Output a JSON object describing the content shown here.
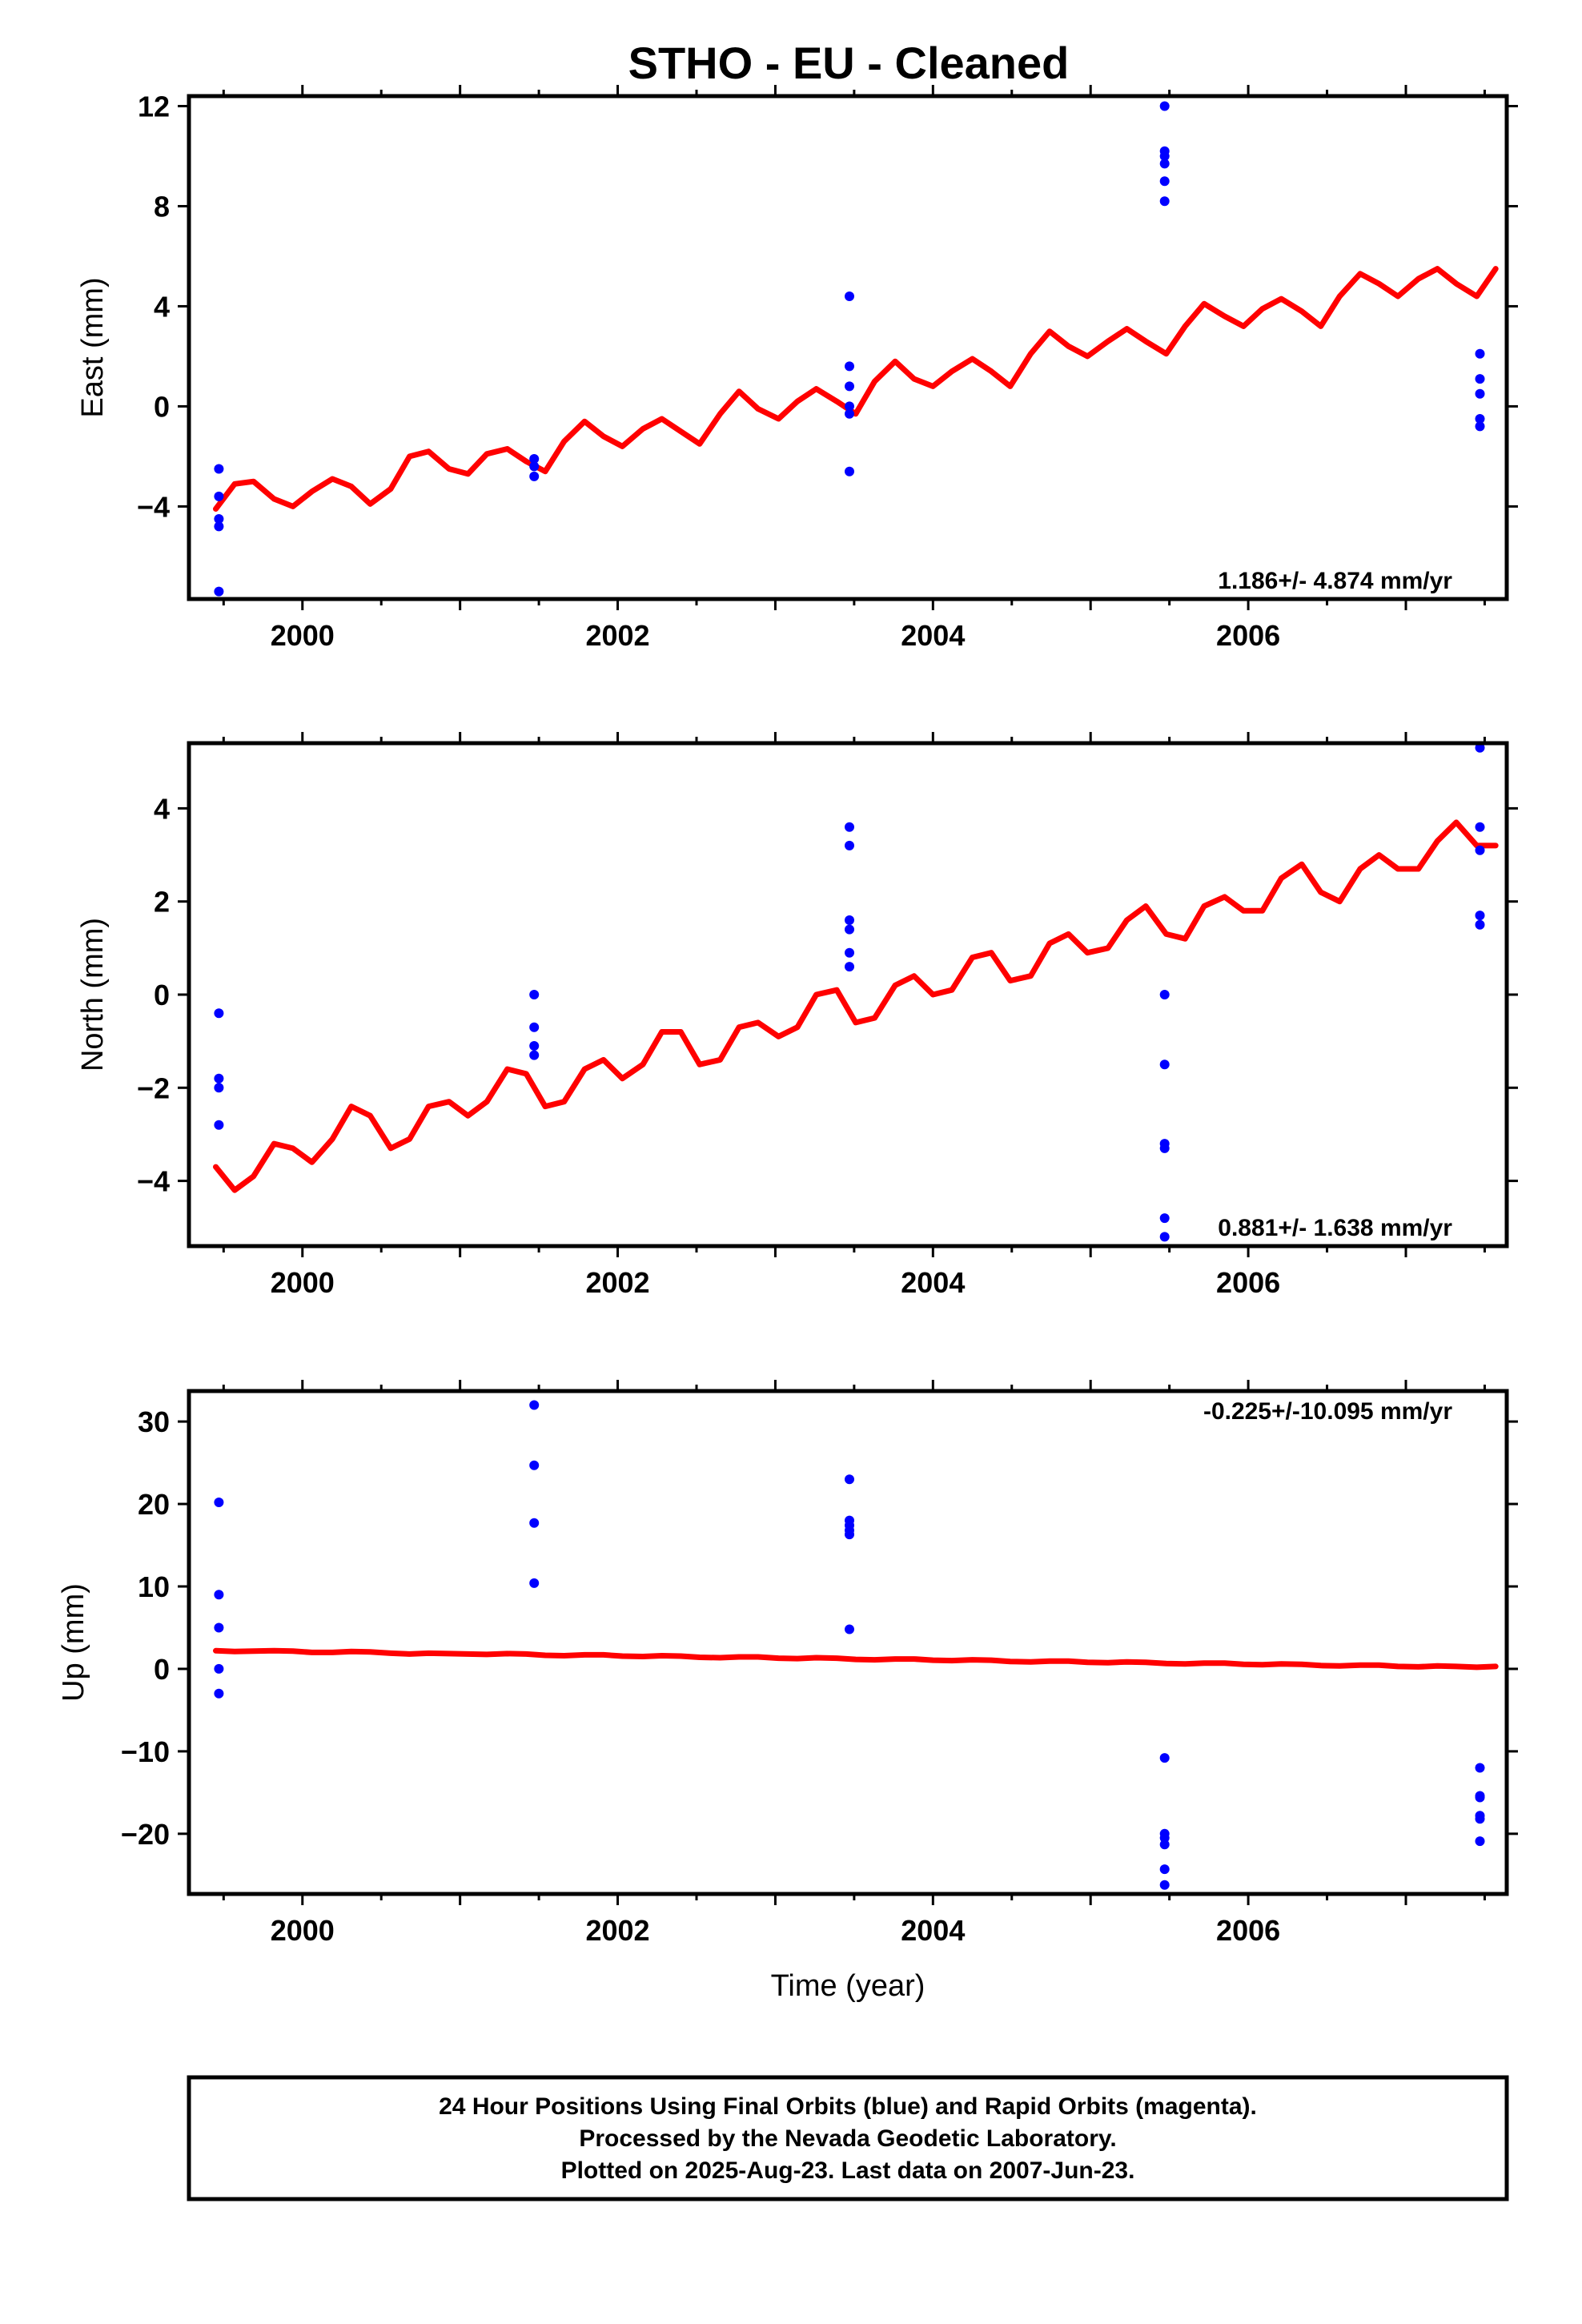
{
  "title": "STHO  - EU - Cleaned",
  "caption": [
    "24 Hour Positions Using Final Orbits (blue) and Rapid Orbits (magenta).",
    "Processed by the Nevada Geodetic Laboratory.",
    "Plotted on 2025-Aug-23. Last data on 2007-Jun-23."
  ],
  "colors": {
    "points": "#0000ff",
    "model": "#ff0000",
    "frame": "#000000"
  },
  "chart_data": [
    {
      "type": "scatter",
      "ylabel": "East (mm)",
      "xlabel": "",
      "xlim": [
        1999.28,
        2007.64
      ],
      "ylim": [
        -7.7,
        12.4
      ],
      "yticks": [
        -4,
        0,
        4,
        8,
        12
      ],
      "xticks": [
        2000,
        2002,
        2004,
        2006
      ],
      "rate": "1.186+/- 4.874 mm/yr",
      "rate_position": "bottom-right",
      "points": [
        [
          1999.47,
          -2.5
        ],
        [
          1999.47,
          -3.6
        ],
        [
          1999.47,
          -4.5
        ],
        [
          1999.47,
          -4.8
        ],
        [
          1999.47,
          -7.4
        ],
        [
          2001.47,
          -2.1
        ],
        [
          2001.47,
          -2.4
        ],
        [
          2001.47,
          -2.8
        ],
        [
          2003.47,
          4.4
        ],
        [
          2003.47,
          1.6
        ],
        [
          2003.47,
          0.8
        ],
        [
          2003.47,
          0.0
        ],
        [
          2003.47,
          -0.3
        ],
        [
          2003.47,
          -2.6
        ],
        [
          2005.47,
          12.0
        ],
        [
          2005.47,
          10.2
        ],
        [
          2005.47,
          10.0
        ],
        [
          2005.47,
          9.7
        ],
        [
          2005.47,
          9.0
        ],
        [
          2005.47,
          8.2
        ],
        [
          2007.47,
          2.1
        ],
        [
          2007.47,
          1.1
        ],
        [
          2007.47,
          0.5
        ],
        [
          2007.47,
          -0.5
        ],
        [
          2007.47,
          -0.8
        ]
      ],
      "model": [
        [
          1999.45,
          -4.1
        ],
        [
          1999.57,
          -3.1
        ],
        [
          1999.69,
          -3.0
        ],
        [
          1999.82,
          -3.7
        ],
        [
          1999.94,
          -4.0
        ],
        [
          2000.06,
          -3.4
        ],
        [
          2000.19,
          -2.9
        ],
        [
          2000.31,
          -3.2
        ],
        [
          2000.43,
          -3.9
        ],
        [
          2000.56,
          -3.3
        ],
        [
          2000.68,
          -2.0
        ],
        [
          2000.8,
          -1.8
        ],
        [
          2000.93,
          -2.5
        ],
        [
          2001.05,
          -2.7
        ],
        [
          2001.17,
          -1.9
        ],
        [
          2001.3,
          -1.7
        ],
        [
          2001.42,
          -2.2
        ],
        [
          2001.54,
          -2.6
        ],
        [
          2001.66,
          -1.4
        ],
        [
          2001.79,
          -0.6
        ],
        [
          2001.91,
          -1.2
        ],
        [
          2002.03,
          -1.6
        ],
        [
          2002.16,
          -0.9
        ],
        [
          2002.28,
          -0.5
        ],
        [
          2002.4,
          -1.0
        ],
        [
          2002.52,
          -1.5
        ],
        [
          2002.65,
          -0.3
        ],
        [
          2002.77,
          0.6
        ],
        [
          2002.89,
          -0.1
        ],
        [
          2003.02,
          -0.5
        ],
        [
          2003.14,
          0.2
        ],
        [
          2003.26,
          0.7
        ],
        [
          2003.39,
          0.2
        ],
        [
          2003.51,
          -0.3
        ],
        [
          2003.63,
          1.0
        ],
        [
          2003.76,
          1.8
        ],
        [
          2003.88,
          1.1
        ],
        [
          2004.0,
          0.8
        ],
        [
          2004.12,
          1.4
        ],
        [
          2004.25,
          1.9
        ],
        [
          2004.37,
          1.4
        ],
        [
          2004.49,
          0.8
        ],
        [
          2004.62,
          2.1
        ],
        [
          2004.74,
          3.0
        ],
        [
          2004.86,
          2.4
        ],
        [
          2004.98,
          2.0
        ],
        [
          2005.11,
          2.6
        ],
        [
          2005.23,
          3.1
        ],
        [
          2005.35,
          2.6
        ],
        [
          2005.48,
          2.1
        ],
        [
          2005.6,
          3.2
        ],
        [
          2005.72,
          4.1
        ],
        [
          2005.85,
          3.6
        ],
        [
          2005.97,
          3.2
        ],
        [
          2006.09,
          3.9
        ],
        [
          2006.21,
          4.3
        ],
        [
          2006.34,
          3.8
        ],
        [
          2006.46,
          3.2
        ],
        [
          2006.58,
          4.4
        ],
        [
          2006.71,
          5.3
        ],
        [
          2006.83,
          4.9
        ],
        [
          2006.95,
          4.4
        ],
        [
          2007.08,
          5.1
        ],
        [
          2007.2,
          5.5
        ],
        [
          2007.32,
          4.9
        ],
        [
          2007.45,
          4.4
        ],
        [
          2007.57,
          5.5
        ]
      ]
    },
    {
      "type": "scatter",
      "ylabel": "North (mm)",
      "xlabel": "",
      "xlim": [
        1999.28,
        2007.64
      ],
      "ylim": [
        -5.4,
        5.4
      ],
      "yticks": [
        -4,
        -2,
        0,
        2,
        4
      ],
      "xticks": [
        2000,
        2002,
        2004,
        2006
      ],
      "rate": "0.881+/- 1.638 mm/yr",
      "rate_position": "bottom-right",
      "points": [
        [
          1999.47,
          -0.4
        ],
        [
          1999.47,
          -1.8
        ],
        [
          1999.47,
          -2.0
        ],
        [
          1999.47,
          -2.8
        ],
        [
          2001.47,
          0.0
        ],
        [
          2001.47,
          -0.7
        ],
        [
          2001.47,
          -1.1
        ],
        [
          2001.47,
          -1.3
        ],
        [
          2003.47,
          3.6
        ],
        [
          2003.47,
          3.2
        ],
        [
          2003.47,
          1.6
        ],
        [
          2003.47,
          1.4
        ],
        [
          2003.47,
          0.9
        ],
        [
          2003.47,
          0.6
        ],
        [
          2005.47,
          0.0
        ],
        [
          2005.47,
          -1.5
        ],
        [
          2005.47,
          -3.2
        ],
        [
          2005.47,
          -3.3
        ],
        [
          2005.47,
          -4.8
        ],
        [
          2005.47,
          -5.2
        ],
        [
          2007.47,
          5.3
        ],
        [
          2007.47,
          3.6
        ],
        [
          2007.47,
          3.1
        ],
        [
          2007.47,
          1.7
        ],
        [
          2007.47,
          1.5
        ]
      ],
      "model": [
        [
          1999.45,
          -3.7
        ],
        [
          1999.57,
          -4.2
        ],
        [
          1999.69,
          -3.9
        ],
        [
          1999.82,
          -3.2
        ],
        [
          1999.94,
          -3.3
        ],
        [
          2000.06,
          -3.6
        ],
        [
          2000.19,
          -3.1
        ],
        [
          2000.31,
          -2.4
        ],
        [
          2000.43,
          -2.6
        ],
        [
          2000.56,
          -3.3
        ],
        [
          2000.68,
          -3.1
        ],
        [
          2000.8,
          -2.4
        ],
        [
          2000.93,
          -2.3
        ],
        [
          2001.05,
          -2.6
        ],
        [
          2001.17,
          -2.3
        ],
        [
          2001.3,
          -1.6
        ],
        [
          2001.42,
          -1.7
        ],
        [
          2001.54,
          -2.4
        ],
        [
          2001.66,
          -2.3
        ],
        [
          2001.79,
          -1.6
        ],
        [
          2001.91,
          -1.4
        ],
        [
          2002.03,
          -1.8
        ],
        [
          2002.16,
          -1.5
        ],
        [
          2002.28,
          -0.8
        ],
        [
          2002.4,
          -0.8
        ],
        [
          2002.52,
          -1.5
        ],
        [
          2002.65,
          -1.4
        ],
        [
          2002.77,
          -0.7
        ],
        [
          2002.89,
          -0.6
        ],
        [
          2003.02,
          -0.9
        ],
        [
          2003.14,
          -0.7
        ],
        [
          2003.26,
          0.0
        ],
        [
          2003.39,
          0.1
        ],
        [
          2003.51,
          -0.6
        ],
        [
          2003.63,
          -0.5
        ],
        [
          2003.76,
          0.2
        ],
        [
          2003.88,
          0.4
        ],
        [
          2004.0,
          0.0
        ],
        [
          2004.12,
          0.1
        ],
        [
          2004.25,
          0.8
        ],
        [
          2004.37,
          0.9
        ],
        [
          2004.49,
          0.3
        ],
        [
          2004.62,
          0.4
        ],
        [
          2004.74,
          1.1
        ],
        [
          2004.86,
          1.3
        ],
        [
          2004.98,
          0.9
        ],
        [
          2005.11,
          1.0
        ],
        [
          2005.23,
          1.6
        ],
        [
          2005.35,
          1.9
        ],
        [
          2005.48,
          1.3
        ],
        [
          2005.6,
          1.2
        ],
        [
          2005.72,
          1.9
        ],
        [
          2005.85,
          2.1
        ],
        [
          2005.97,
          1.8
        ],
        [
          2006.09,
          1.8
        ],
        [
          2006.21,
          2.5
        ],
        [
          2006.34,
          2.8
        ],
        [
          2006.46,
          2.2
        ],
        [
          2006.58,
          2.0
        ],
        [
          2006.71,
          2.7
        ],
        [
          2006.83,
          3.0
        ],
        [
          2006.95,
          2.7
        ],
        [
          2007.08,
          2.7
        ],
        [
          2007.2,
          3.3
        ],
        [
          2007.32,
          3.7
        ],
        [
          2007.45,
          3.2
        ],
        [
          2007.57,
          3.2
        ]
      ]
    },
    {
      "type": "scatter",
      "ylabel": "Up (mm)",
      "xlabel": "Time (year)",
      "xlim": [
        1999.28,
        2007.64
      ],
      "ylim": [
        -27.3,
        33.7
      ],
      "yticks": [
        -20,
        -10,
        0,
        10,
        20,
        30
      ],
      "xticks": [
        2000,
        2002,
        2004,
        2006
      ],
      "rate": "-0.225+/-10.095 mm/yr",
      "rate_position": "top-right",
      "points": [
        [
          1999.47,
          20.2
        ],
        [
          1999.47,
          9.0
        ],
        [
          1999.47,
          5.0
        ],
        [
          1999.47,
          0.0
        ],
        [
          1999.47,
          -3.0
        ],
        [
          2001.47,
          32.0
        ],
        [
          2001.47,
          24.7
        ],
        [
          2001.47,
          17.7
        ],
        [
          2001.47,
          10.4
        ],
        [
          2003.47,
          23.0
        ],
        [
          2003.47,
          18.0
        ],
        [
          2003.47,
          17.4
        ],
        [
          2003.47,
          16.8
        ],
        [
          2003.47,
          16.3
        ],
        [
          2003.47,
          4.8
        ],
        [
          2005.47,
          -10.8
        ],
        [
          2005.47,
          -20.0
        ],
        [
          2005.47,
          -20.5
        ],
        [
          2005.47,
          -21.3
        ],
        [
          2005.47,
          -24.3
        ],
        [
          2005.47,
          -26.2
        ],
        [
          2007.47,
          -12.0
        ],
        [
          2007.47,
          -15.4
        ],
        [
          2007.47,
          -15.6
        ],
        [
          2007.47,
          -17.8
        ],
        [
          2007.47,
          -18.2
        ],
        [
          2007.47,
          -20.9
        ]
      ],
      "model": [
        [
          1999.45,
          2.2
        ],
        [
          1999.57,
          2.1
        ],
        [
          1999.69,
          2.15
        ],
        [
          1999.82,
          2.2
        ],
        [
          1999.94,
          2.15
        ],
        [
          2000.06,
          2.0
        ],
        [
          2000.19,
          2.0
        ],
        [
          2000.31,
          2.1
        ],
        [
          2000.43,
          2.05
        ],
        [
          2000.56,
          1.9
        ],
        [
          2000.68,
          1.8
        ],
        [
          2000.8,
          1.9
        ],
        [
          2000.93,
          1.85
        ],
        [
          2001.05,
          1.8
        ],
        [
          2001.17,
          1.75
        ],
        [
          2001.3,
          1.85
        ],
        [
          2001.42,
          1.8
        ],
        [
          2001.54,
          1.65
        ],
        [
          2001.66,
          1.6
        ],
        [
          2001.79,
          1.7
        ],
        [
          2001.91,
          1.7
        ],
        [
          2002.03,
          1.55
        ],
        [
          2002.16,
          1.5
        ],
        [
          2002.28,
          1.6
        ],
        [
          2002.4,
          1.55
        ],
        [
          2002.52,
          1.4
        ],
        [
          2002.65,
          1.35
        ],
        [
          2002.77,
          1.45
        ],
        [
          2002.89,
          1.45
        ],
        [
          2003.02,
          1.3
        ],
        [
          2003.14,
          1.25
        ],
        [
          2003.26,
          1.35
        ],
        [
          2003.39,
          1.3
        ],
        [
          2003.51,
          1.15
        ],
        [
          2003.63,
          1.1
        ],
        [
          2003.76,
          1.2
        ],
        [
          2003.88,
          1.2
        ],
        [
          2004.0,
          1.05
        ],
        [
          2004.12,
          1.0
        ],
        [
          2004.25,
          1.1
        ],
        [
          2004.37,
          1.05
        ],
        [
          2004.49,
          0.9
        ],
        [
          2004.62,
          0.85
        ],
        [
          2004.74,
          0.95
        ],
        [
          2004.86,
          0.95
        ],
        [
          2004.98,
          0.8
        ],
        [
          2005.11,
          0.75
        ],
        [
          2005.23,
          0.85
        ],
        [
          2005.35,
          0.8
        ],
        [
          2005.48,
          0.65
        ],
        [
          2005.6,
          0.6
        ],
        [
          2005.72,
          0.7
        ],
        [
          2005.85,
          0.7
        ],
        [
          2005.97,
          0.55
        ],
        [
          2006.09,
          0.5
        ],
        [
          2006.21,
          0.6
        ],
        [
          2006.34,
          0.55
        ],
        [
          2006.46,
          0.4
        ],
        [
          2006.58,
          0.35
        ],
        [
          2006.71,
          0.45
        ],
        [
          2006.83,
          0.45
        ],
        [
          2006.95,
          0.3
        ],
        [
          2007.08,
          0.25
        ],
        [
          2007.2,
          0.35
        ],
        [
          2007.32,
          0.3
        ],
        [
          2007.45,
          0.2
        ],
        [
          2007.57,
          0.3
        ]
      ]
    }
  ]
}
